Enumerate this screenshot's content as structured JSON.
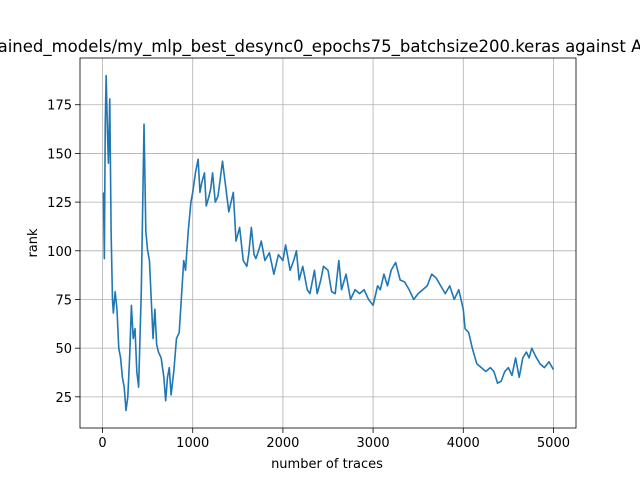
{
  "chart_data": {
    "type": "line",
    "title": "ained_models/my_mlp_best_desync0_epochs75_batchsize200.keras against A",
    "xlabel": "number of traces",
    "ylabel": "rank",
    "x": [
      10,
      20,
      30,
      40,
      55,
      65,
      80,
      95,
      110,
      120,
      140,
      160,
      180,
      200,
      220,
      240,
      260,
      280,
      300,
      320,
      340,
      360,
      380,
      400,
      430,
      460,
      480,
      500,
      520,
      540,
      560,
      580,
      600,
      620,
      650,
      680,
      700,
      720,
      740,
      760,
      790,
      820,
      850,
      880,
      900,
      920,
      950,
      980,
      1000,
      1030,
      1060,
      1080,
      1100,
      1130,
      1150,
      1180,
      1200,
      1220,
      1250,
      1280,
      1300,
      1330,
      1360,
      1400,
      1450,
      1480,
      1520,
      1560,
      1600,
      1620,
      1650,
      1680,
      1700,
      1730,
      1760,
      1800,
      1850,
      1900,
      1950,
      2000,
      2030,
      2080,
      2120,
      2150,
      2180,
      2220,
      2270,
      2300,
      2350,
      2380,
      2420,
      2450,
      2500,
      2540,
      2580,
      2620,
      2650,
      2700,
      2750,
      2800,
      2850,
      2900,
      2950,
      3000,
      3050,
      3080,
      3120,
      3160,
      3200,
      3250,
      3300,
      3350,
      3400,
      3450,
      3500,
      3550,
      3600,
      3650,
      3700,
      3750,
      3800,
      3850,
      3900,
      3950,
      4000,
      4020,
      4060,
      4100,
      4150,
      4200,
      4250,
      4300,
      4340,
      4380,
      4420,
      4460,
      4500,
      4540,
      4580,
      4620,
      4660,
      4700,
      4730,
      4760,
      4800,
      4850,
      4900,
      4950,
      5000
    ],
    "series": [
      {
        "color": "#1f77b4",
        "values": [
          130,
          96,
          165,
          190,
          160,
          145,
          178,
          110,
          75,
          68,
          79,
          70,
          50,
          45,
          35,
          30,
          18,
          25,
          45,
          72,
          55,
          60,
          38,
          30,
          80,
          165,
          110,
          100,
          95,
          75,
          55,
          70,
          52,
          48,
          45,
          35,
          23,
          35,
          40,
          26,
          38,
          55,
          58,
          80,
          95,
          90,
          110,
          125,
          130,
          140,
          147,
          130,
          135,
          140,
          123,
          128,
          132,
          140,
          125,
          128,
          135,
          146,
          135,
          120,
          130,
          105,
          112,
          95,
          92,
          98,
          112,
          98,
          96,
          100,
          105,
          95,
          99,
          88,
          98,
          95,
          103,
          90,
          95,
          100,
          85,
          92,
          80,
          78,
          90,
          78,
          85,
          92,
          90,
          79,
          78,
          95,
          80,
          88,
          75,
          80,
          78,
          80,
          75,
          72,
          82,
          80,
          88,
          82,
          90,
          94,
          85,
          84,
          80,
          75,
          78,
          80,
          82,
          88,
          86,
          82,
          78,
          82,
          75,
          80,
          70,
          60,
          58,
          50,
          42,
          40,
          38,
          40,
          38,
          32,
          33,
          38,
          40,
          36,
          45,
          35,
          45,
          48,
          45,
          50,
          46,
          42,
          40,
          43,
          39
        ]
      }
    ],
    "xlim": [
      -250,
      5250
    ],
    "ylim": [
      9,
      199
    ],
    "xticks": [
      0,
      1000,
      2000,
      3000,
      4000,
      5000
    ],
    "yticks": [
      25,
      50,
      75,
      100,
      125,
      150,
      175
    ],
    "grid": true
  }
}
